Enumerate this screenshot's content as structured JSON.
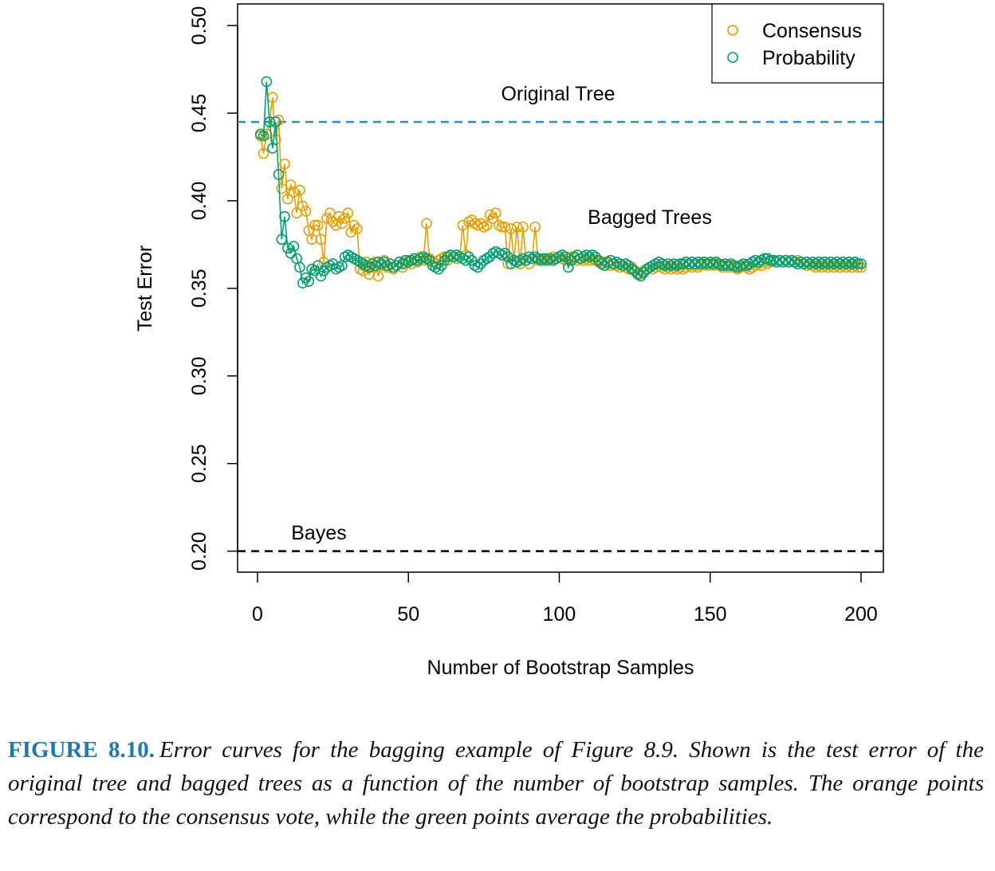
{
  "chart_data": {
    "type": "line",
    "xlabel": "Number of Bootstrap Samples",
    "ylabel": "Test Error",
    "xlim": [
      -6.6,
      207.4
    ],
    "ylim": [
      0.188,
      0.5123
    ],
    "xticks": [
      0,
      50,
      100,
      150,
      200
    ],
    "yticks": [
      {
        "value": 0.2,
        "label": "0.20"
      },
      {
        "value": 0.25,
        "label": "0.25"
      },
      {
        "value": 0.3,
        "label": "0.30"
      },
      {
        "value": 0.35,
        "label": "0.35"
      },
      {
        "value": 0.4,
        "label": "0.40"
      },
      {
        "value": 0.45,
        "label": "0.45"
      },
      {
        "value": 0.5,
        "label": "0.50"
      }
    ],
    "legend": "topright",
    "hlines": [
      {
        "label": "Original Tree",
        "value": 0.445,
        "color": "#2a8fb0"
      },
      {
        "label": "Bayes",
        "value": 0.2,
        "color": "#000000"
      }
    ],
    "annotations": [
      "Bagged Trees"
    ],
    "x": [
      1,
      2,
      3,
      4,
      5,
      6,
      7,
      8,
      9,
      10,
      11,
      12,
      13,
      14,
      15,
      16,
      17,
      18,
      19,
      20,
      21,
      22,
      23,
      24,
      25,
      26,
      27,
      28,
      29,
      30,
      31,
      32,
      33,
      34,
      35,
      36,
      37,
      38,
      39,
      40,
      41,
      42,
      43,
      44,
      45,
      46,
      47,
      48,
      49,
      50,
      51,
      52,
      53,
      54,
      55,
      56,
      57,
      58,
      59,
      60,
      61,
      62,
      63,
      64,
      65,
      66,
      67,
      68,
      69,
      70,
      71,
      72,
      73,
      74,
      75,
      76,
      77,
      78,
      79,
      80,
      81,
      82,
      83,
      84,
      85,
      86,
      87,
      88,
      89,
      90,
      91,
      92,
      93,
      94,
      95,
      96,
      97,
      98,
      99,
      100,
      101,
      102,
      103,
      104,
      105,
      106,
      107,
      108,
      109,
      110,
      111,
      112,
      113,
      114,
      115,
      116,
      117,
      118,
      119,
      120,
      121,
      122,
      123,
      124,
      125,
      126,
      127,
      128,
      129,
      130,
      131,
      132,
      133,
      134,
      135,
      136,
      137,
      138,
      139,
      140,
      141,
      142,
      143,
      144,
      145,
      146,
      147,
      148,
      149,
      150,
      151,
      152,
      153,
      154,
      155,
      156,
      157,
      158,
      159,
      160,
      161,
      162,
      163,
      164,
      165,
      166,
      167,
      168,
      169,
      170,
      171,
      172,
      173,
      174,
      175,
      176,
      177,
      178,
      179,
      180,
      181,
      182,
      183,
      184,
      185,
      186,
      187,
      188,
      189,
      190,
      191,
      192,
      193,
      194,
      195,
      196,
      197,
      198,
      199,
      200
    ],
    "series": [
      {
        "name": "Consensus",
        "color": "#E69F00",
        "values": [
          0.437,
          0.427,
          0.438,
          0.445,
          0.459,
          0.435,
          0.446,
          0.407,
          0.421,
          0.401,
          0.409,
          0.405,
          0.393,
          0.406,
          0.397,
          0.394,
          0.383,
          0.378,
          0.386,
          0.386,
          0.378,
          0.365,
          0.39,
          0.393,
          0.388,
          0.386,
          0.391,
          0.387,
          0.39,
          0.393,
          0.382,
          0.386,
          0.384,
          0.361,
          0.36,
          0.365,
          0.358,
          0.362,
          0.365,
          0.357,
          0.363,
          0.366,
          0.362,
          0.364,
          0.361,
          0.363,
          0.365,
          0.362,
          0.364,
          0.366,
          0.364,
          0.367,
          0.365,
          0.368,
          0.366,
          0.387,
          0.367,
          0.365,
          0.364,
          0.366,
          0.367,
          0.368,
          0.366,
          0.369,
          0.368,
          0.367,
          0.368,
          0.386,
          0.369,
          0.388,
          0.389,
          0.387,
          0.386,
          0.387,
          0.385,
          0.386,
          0.392,
          0.39,
          0.393,
          0.386,
          0.385,
          0.385,
          0.364,
          0.384,
          0.366,
          0.385,
          0.364,
          0.385,
          0.366,
          0.364,
          0.367,
          0.385,
          0.366,
          0.367,
          0.366,
          0.367,
          0.366,
          0.368,
          0.367,
          0.368,
          0.367,
          0.366,
          0.367,
          0.368,
          0.367,
          0.366,
          0.367,
          0.366,
          0.367,
          0.366,
          0.367,
          0.366,
          0.365,
          0.364,
          0.365,
          0.364,
          0.363,
          0.364,
          0.363,
          0.362,
          0.363,
          0.362,
          0.361,
          0.362,
          0.36,
          0.359,
          0.358,
          0.36,
          0.361,
          0.362,
          0.361,
          0.362,
          0.363,
          0.362,
          0.361,
          0.362,
          0.361,
          0.362,
          0.361,
          0.362,
          0.361,
          0.362,
          0.363,
          0.362,
          0.363,
          0.362,
          0.363,
          0.364,
          0.363,
          0.364,
          0.363,
          0.364,
          0.363,
          0.362,
          0.363,
          0.362,
          0.363,
          0.362,
          0.361,
          0.362,
          0.363,
          0.362,
          0.361,
          0.362,
          0.363,
          0.364,
          0.363,
          0.365,
          0.364,
          0.365,
          0.366,
          0.365,
          0.366,
          0.365,
          0.366,
          0.365,
          0.366,
          0.365,
          0.366,
          0.365,
          0.364,
          0.363,
          0.364,
          0.363,
          0.362,
          0.363,
          0.362,
          0.363,
          0.362,
          0.363,
          0.362,
          0.363,
          0.362,
          0.363,
          0.362,
          0.363,
          0.362,
          0.363,
          0.362,
          0.362
        ]
      },
      {
        "name": "Probability",
        "color": "#009E73",
        "values": [
          0.438,
          0.437,
          0.468,
          0.445,
          0.43,
          0.445,
          0.415,
          0.378,
          0.391,
          0.373,
          0.37,
          0.374,
          0.367,
          0.362,
          0.353,
          0.356,
          0.354,
          0.361,
          0.36,
          0.363,
          0.357,
          0.36,
          0.362,
          0.363,
          0.364,
          0.361,
          0.362,
          0.363,
          0.368,
          0.369,
          0.368,
          0.367,
          0.366,
          0.365,
          0.364,
          0.363,
          0.362,
          0.364,
          0.363,
          0.365,
          0.364,
          0.365,
          0.363,
          0.364,
          0.362,
          0.363,
          0.365,
          0.364,
          0.366,
          0.365,
          0.366,
          0.367,
          0.366,
          0.367,
          0.368,
          0.367,
          0.366,
          0.363,
          0.362,
          0.361,
          0.363,
          0.366,
          0.368,
          0.369,
          0.368,
          0.369,
          0.368,
          0.367,
          0.366,
          0.368,
          0.366,
          0.363,
          0.362,
          0.364,
          0.366,
          0.367,
          0.368,
          0.37,
          0.371,
          0.37,
          0.369,
          0.37,
          0.368,
          0.364,
          0.366,
          0.365,
          0.366,
          0.367,
          0.366,
          0.368,
          0.367,
          0.368,
          0.367,
          0.366,
          0.367,
          0.366,
          0.367,
          0.366,
          0.367,
          0.368,
          0.369,
          0.368,
          0.362,
          0.366,
          0.368,
          0.369,
          0.367,
          0.368,
          0.369,
          0.368,
          0.369,
          0.368,
          0.366,
          0.364,
          0.363,
          0.365,
          0.366,
          0.364,
          0.365,
          0.364,
          0.363,
          0.364,
          0.363,
          0.361,
          0.36,
          0.358,
          0.357,
          0.359,
          0.361,
          0.362,
          0.363,
          0.364,
          0.365,
          0.364,
          0.363,
          0.364,
          0.363,
          0.364,
          0.363,
          0.364,
          0.364,
          0.365,
          0.364,
          0.365,
          0.364,
          0.365,
          0.364,
          0.365,
          0.364,
          0.365,
          0.364,
          0.365,
          0.364,
          0.363,
          0.364,
          0.363,
          0.364,
          0.363,
          0.362,
          0.363,
          0.364,
          0.363,
          0.364,
          0.365,
          0.366,
          0.365,
          0.366,
          0.367,
          0.367,
          0.366,
          0.366,
          0.365,
          0.366,
          0.365,
          0.366,
          0.365,
          0.366,
          0.365,
          0.364,
          0.365,
          0.364,
          0.365,
          0.364,
          0.365,
          0.364,
          0.365,
          0.364,
          0.365,
          0.364,
          0.365,
          0.364,
          0.365,
          0.364,
          0.365,
          0.364,
          0.365,
          0.364,
          0.365,
          0.364,
          0.364
        ]
      }
    ]
  },
  "caption": {
    "label": "FIGURE 8.10.",
    "text": "Error curves for the bagging example of Figure 8.9. Shown is the test error of the original tree and bagged trees as a function of the number of bootstrap samples. The orange points correspond to the consensus vote, while the green points average the probabilities."
  }
}
